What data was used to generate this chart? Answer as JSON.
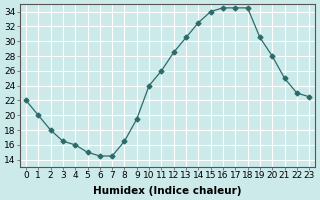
{
  "x": [
    0,
    1,
    2,
    3,
    4,
    5,
    6,
    7,
    8,
    9,
    10,
    11,
    12,
    13,
    14,
    15,
    16,
    17,
    18,
    19,
    20,
    21,
    22,
    23
  ],
  "y": [
    22,
    20,
    18,
    16.5,
    16,
    15,
    14.5,
    14.5,
    16.5,
    19.5,
    24,
    26,
    28.5,
    30.5,
    32.5,
    34,
    34.5,
    34.5,
    34.5,
    30.5,
    28,
    25,
    23,
    22.5
  ],
  "line_color": "#2d6b6b",
  "marker": "D",
  "marker_size": 2.5,
  "bg_color": "#cceaea",
  "grid_major_color": "#ffffff",
  "grid_minor_color": "#ddf4f4",
  "xlabel": "Humidex (Indice chaleur)",
  "ylim": [
    13,
    35
  ],
  "yticks": [
    14,
    16,
    18,
    20,
    22,
    24,
    26,
    28,
    30,
    32,
    34
  ],
  "xlim": [
    -0.5,
    23.5
  ],
  "xticks": [
    0,
    1,
    2,
    3,
    4,
    5,
    6,
    7,
    8,
    9,
    10,
    11,
    12,
    13,
    14,
    15,
    16,
    17,
    18,
    19,
    20,
    21,
    22,
    23
  ],
  "xlabel_fontsize": 7.5,
  "tick_fontsize": 6.5
}
